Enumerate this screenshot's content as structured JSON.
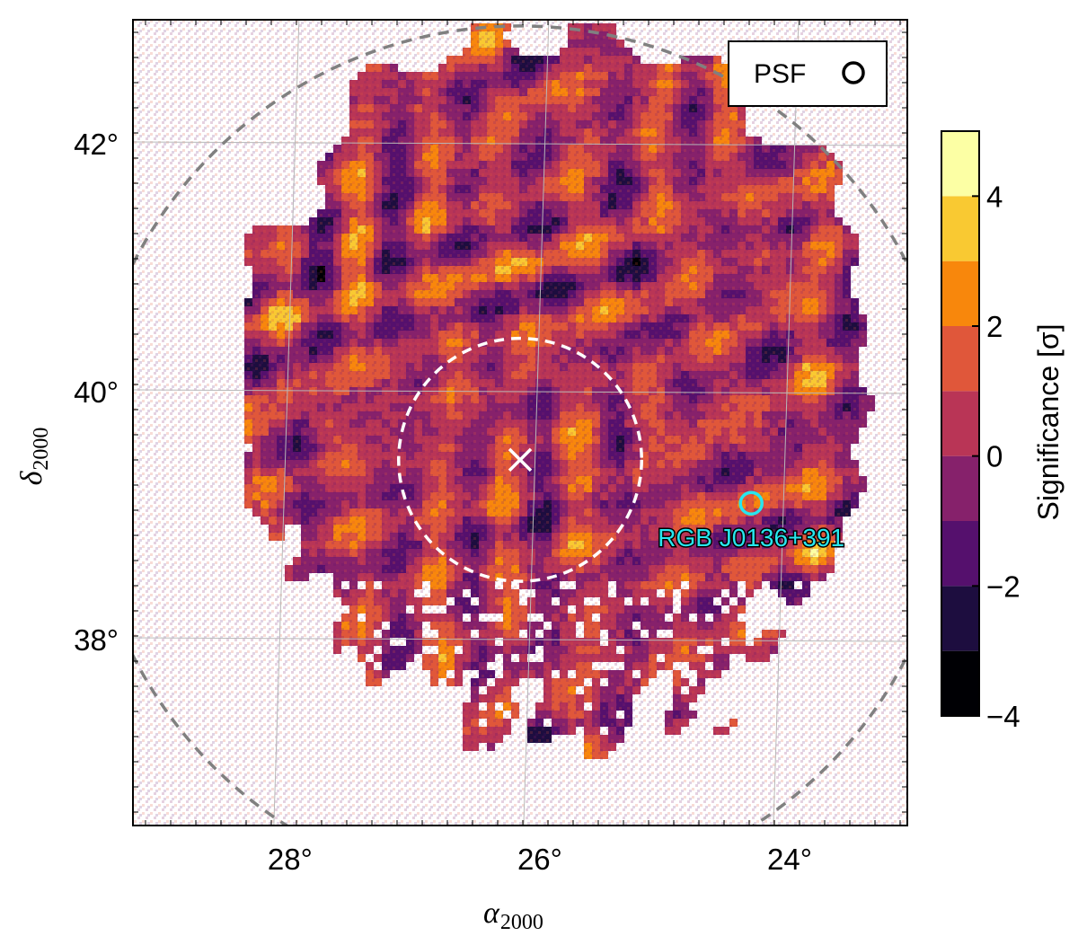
{
  "chart_data": {
    "type": "heatmap",
    "title": "",
    "xlabel": "α",
    "xlabel_sub": "2000",
    "ylabel": "δ",
    "ylabel_sub": "2000",
    "x_ticks": [
      "28°",
      "26°",
      "24°"
    ],
    "x_tick_values": [
      28,
      26,
      24
    ],
    "y_ticks": [
      "42°",
      "40°",
      "38°"
    ],
    "y_tick_values": [
      42,
      40,
      38
    ],
    "xlim": [
      29.2,
      23.0
    ],
    "ylim": [
      36.5,
      43.0
    ],
    "grid": true,
    "colorbar": {
      "label": "Significance [σ]",
      "range": [
        -4,
        5
      ],
      "bins": [
        -4,
        -3,
        -2,
        -1,
        0,
        1,
        2,
        3,
        4,
        5
      ],
      "colors": [
        "#000004",
        "#1d0d3f",
        "#55106d",
        "#86216b",
        "#b93556",
        "#e0573a",
        "#f8870c",
        "#f9c932",
        "#fcffa4"
      ],
      "tick_labels": [
        "4",
        "2",
        "0",
        "−2",
        "−4"
      ],
      "tick_values": [
        4,
        2,
        0,
        -2,
        -4
      ]
    },
    "center_marker": {
      "ra": 26.1,
      "dec": 39.45,
      "symbol": "×"
    },
    "inner_region_radius_deg": 0.98,
    "outer_region_radius_deg": 3.5,
    "source": {
      "name": "RGB J0136+391",
      "ra": 24.25,
      "dec": 39.1
    },
    "legend": {
      "label": "PSF",
      "position": "top-right"
    }
  }
}
